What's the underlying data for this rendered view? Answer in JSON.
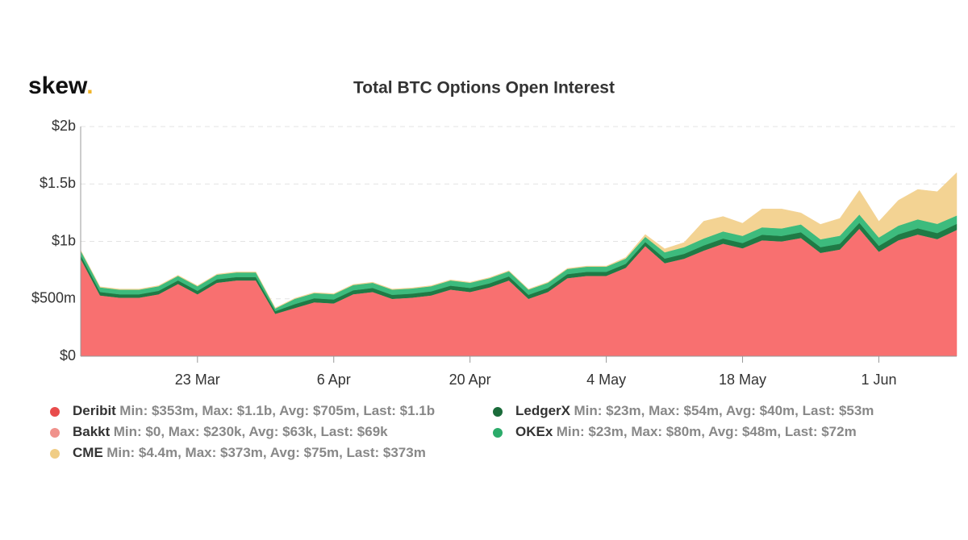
{
  "logo": "skew.",
  "chart_data": {
    "type": "stacked_area",
    "title": "Total BTC Options Open Interest",
    "x": [
      "11 Mar",
      "13 Mar",
      "15 Mar",
      "17 Mar",
      "19 Mar",
      "21 Mar",
      "23 Mar",
      "25 Mar",
      "27 Mar",
      "29 Mar",
      "31 Mar",
      "2 Apr",
      "4 Apr",
      "6 Apr",
      "8 Apr",
      "10 Apr",
      "12 Apr",
      "14 Apr",
      "16 Apr",
      "18 Apr",
      "20 Apr",
      "22 Apr",
      "24 Apr",
      "26 Apr",
      "28 Apr",
      "30 Apr",
      "2 May",
      "4 May",
      "6 May",
      "8 May",
      "10 May",
      "12 May",
      "14 May",
      "16 May",
      "18 May",
      "20 May",
      "22 May",
      "24 May",
      "26 May",
      "28 May",
      "30 May",
      "1 Jun",
      "3 Jun",
      "5 Jun",
      "7 Jun",
      "9 Jun"
    ],
    "xticks": [
      "23 Mar",
      "6 Apr",
      "20 Apr",
      "4 May",
      "18 May",
      "1 Jun"
    ],
    "ylim": [
      0,
      2000000000.0
    ],
    "yticks": [
      {
        "value": 0,
        "label": "$0"
      },
      {
        "value": 500000000.0,
        "label": "$500m"
      },
      {
        "value": 1000000000.0,
        "label": "$1b"
      },
      {
        "value": 1500000000.0,
        "label": "$1.5b"
      },
      {
        "value": 2000000000.0,
        "label": "$2b"
      }
    ],
    "grid": true,
    "series": [
      {
        "name": "Deribit",
        "color": "#f87070",
        "summary": "Min: $353m, Max: $1.1b, Avg: $705m, Last: $1.1b",
        "values": [
          850000000.0,
          530000000.0,
          510000000.0,
          510000000.0,
          540000000.0,
          630000000.0,
          540000000.0,
          640000000.0,
          660000000.0,
          660000000.0,
          370000000.0,
          420000000.0,
          470000000.0,
          460000000.0,
          540000000.0,
          560000000.0,
          500000000.0,
          510000000.0,
          530000000.0,
          580000000.0,
          560000000.0,
          600000000.0,
          660000000.0,
          500000000.0,
          560000000.0,
          680000000.0,
          700000000.0,
          700000000.0,
          770000000.0,
          960000000.0,
          810000000.0,
          850000000.0,
          920000000.0,
          980000000.0,
          940000000.0,
          1010000000.0,
          1000000000.0,
          1030000000.0,
          900000000.0,
          930000000.0,
          1110000000.0,
          910000000.0,
          1010000000.0,
          1060000000.0,
          1020000000.0,
          1100000000.0
        ]
      },
      {
        "name": "Bakkt",
        "color": "#f29a94",
        "summary": "Min: $0, Max: $230k, Avg: $63k, Last: $69k",
        "values": [
          0,
          0,
          0,
          0,
          0,
          0,
          0,
          0,
          10000.0,
          20000.0,
          20000.0,
          30000.0,
          30000.0,
          40000.0,
          40000.0,
          50000.0,
          50000.0,
          60000.0,
          60000.0,
          70000.0,
          70000.0,
          80000.0,
          90000.0,
          100000.0,
          120000.0,
          150000.0,
          180000.0,
          200000.0,
          230000.0,
          210000.0,
          190000.0,
          150000.0,
          120000.0,
          100000.0,
          90000.0,
          80000.0,
          70000.0,
          70000.0,
          60000.0,
          60000.0,
          70000.0,
          70000.0,
          70000.0,
          70000.0,
          70000.0,
          69000.0
        ]
      },
      {
        "name": "LedgerX",
        "color": "#1f7a45",
        "summary": "Min: $23m, Max: $54m, Avg: $40m, Last: $53m",
        "values": [
          30000000.0,
          30000000.0,
          30000000.0,
          30000000.0,
          30000000.0,
          30000000.0,
          30000000.0,
          30000000.0,
          30000000.0,
          30000000.0,
          23000000.0,
          35000000.0,
          35000000.0,
          35000000.0,
          35000000.0,
          35000000.0,
          35000000.0,
          35000000.0,
          35000000.0,
          35000000.0,
          35000000.0,
          35000000.0,
          35000000.0,
          35000000.0,
          35000000.0,
          35000000.0,
          35000000.0,
          35000000.0,
          35000000.0,
          35000000.0,
          40000000.0,
          42000000.0,
          45000000.0,
          45000000.0,
          46000000.0,
          48000000.0,
          48000000.0,
          50000000.0,
          50000000.0,
          50000000.0,
          52000000.0,
          52000000.0,
          52000000.0,
          54000000.0,
          53000000.0,
          53000000.0
        ]
      },
      {
        "name": "OKEx",
        "color": "#3dbb7d",
        "summary": "Min: $23m, Max: $80m, Avg: $48m, Last: $72m",
        "values": [
          40000000.0,
          40000000.0,
          40000000.0,
          40000000.0,
          40000000.0,
          40000000.0,
          40000000.0,
          40000000.0,
          40000000.0,
          40000000.0,
          23000000.0,
          45000000.0,
          45000000.0,
          45000000.0,
          45000000.0,
          45000000.0,
          45000000.0,
          45000000.0,
          45000000.0,
          45000000.0,
          45000000.0,
          45000000.0,
          45000000.0,
          45000000.0,
          45000000.0,
          45000000.0,
          45000000.0,
          45000000.0,
          45000000.0,
          45000000.0,
          55000000.0,
          58000000.0,
          60000000.0,
          62000000.0,
          62000000.0,
          65000000.0,
          65000000.0,
          68000000.0,
          68000000.0,
          70000000.0,
          72000000.0,
          72000000.0,
          75000000.0,
          78000000.0,
          80000000.0,
          72000000.0
        ]
      },
      {
        "name": "CME",
        "color": "#f3d393",
        "summary": "Min: $4.4m, Max: $373m, Avg: $75m, Last: $373m",
        "values": [
          4400000.0,
          5000000.0,
          5000000.0,
          5000000.0,
          5000000.0,
          5000000.0,
          5000000.0,
          5000000.0,
          5000000.0,
          5000000.0,
          5000000.0,
          5000000.0,
          5000000.0,
          5000000.0,
          5000000.0,
          5000000.0,
          5000000.0,
          5000000.0,
          5000000.0,
          5000000.0,
          5000000.0,
          5000000.0,
          5000000.0,
          5000000.0,
          5000000.0,
          5000000.0,
          5000000.0,
          5000000.0,
          10000000.0,
          20000000.0,
          30000000.0,
          40000000.0,
          150000000.0,
          130000000.0,
          110000000.0,
          160000000.0,
          170000000.0,
          100000000.0,
          130000000.0,
          150000000.0,
          210000000.0,
          140000000.0,
          220000000.0,
          260000000.0,
          280000000.0,
          373000000.0
        ]
      }
    ]
  }
}
